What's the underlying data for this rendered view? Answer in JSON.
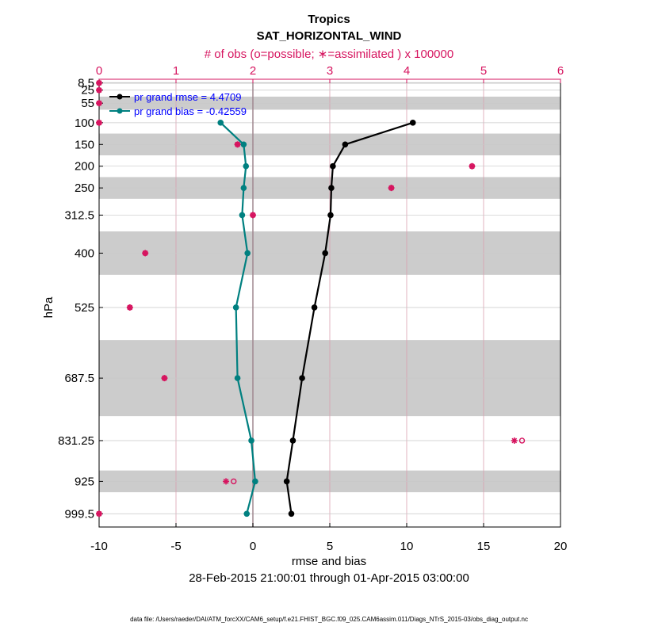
{
  "chart_data": {
    "type": "line",
    "title": "Tropics",
    "subtitle": "SAT_HORIZONTAL_WIND",
    "top_axis_label": "# of obs (o=possible; ∗=assimilated ) x 100000",
    "xlabel": "rmse and bias",
    "ylabel": "hPa",
    "date_range": "28-Feb-2015 21:00:01 through 01-Apr-2015 03:00:00",
    "footer": "data file: /Users/raeder/DAI/ATM_forcXX/CAM6_setup/f.e21.FHIST_BGC.f09_025.CAM6assim.011/Diags_NTrS_2015-03/obs_diag_output.nc",
    "xlim": [
      -10,
      20
    ],
    "xticks": [
      "-10",
      "-5",
      "0",
      "5",
      "10",
      "15",
      "20"
    ],
    "xtick_values": [
      -10,
      -5,
      0,
      5,
      10,
      15,
      20
    ],
    "top_xlim": [
      0,
      6
    ],
    "top_xticks": [
      "0",
      "1",
      "2",
      "3",
      "4",
      "5",
      "6"
    ],
    "top_xtick_values": [
      0,
      1,
      2,
      3,
      4,
      5,
      6
    ],
    "levels": [
      8.5,
      25,
      55,
      100,
      150,
      200,
      250,
      312.5,
      400,
      525,
      687.5,
      831.25,
      925,
      999.5
    ],
    "level_labels": [
      "8.5",
      "25",
      "55",
      "100",
      "150",
      "200",
      "250",
      "312.5",
      "400",
      "525",
      "687.5",
      "831.25",
      "925",
      "999.5"
    ],
    "ylim_top": 0,
    "ylim_bottom": 1030,
    "shaded_bands": [
      [
        7,
        10
      ],
      [
        40,
        70
      ],
      [
        125,
        175
      ],
      [
        225,
        275
      ],
      [
        350,
        450
      ],
      [
        600,
        775
      ],
      [
        900,
        950
      ]
    ],
    "series": [
      {
        "name": "pr grand rmse",
        "legend": "pr grand rmse = 4.4709",
        "color": "#000000",
        "levels": [
          100,
          150,
          200,
          250,
          312.5,
          400,
          525,
          687.5,
          831.25,
          925,
          999.5
        ],
        "values": [
          10.4,
          6.0,
          5.2,
          5.1,
          5.05,
          4.7,
          4.0,
          3.2,
          2.6,
          2.2,
          2.5
        ]
      },
      {
        "name": "pr grand bias",
        "legend": "pr grand bias = -0.42559",
        "color": "#008080",
        "levels": [
          100,
          150,
          200,
          250,
          312.5,
          400,
          525,
          687.5,
          831.25,
          925,
          999.5
        ],
        "values": [
          -2.1,
          -0.6,
          -0.45,
          -0.6,
          -0.7,
          -0.35,
          -1.1,
          -1.0,
          -0.1,
          0.15,
          -0.4
        ]
      }
    ],
    "obs_counts": {
      "color": "#d6145f",
      "levels": [
        8.5,
        25,
        55,
        100,
        150,
        200,
        250,
        312.5,
        400,
        525,
        687.5,
        831.25,
        925,
        999.5
      ],
      "assimilated": [
        0.0,
        0.0,
        0.0,
        0.0,
        1.8,
        4.85,
        3.8,
        2.0,
        0.6,
        0.4,
        0.85,
        5.4,
        1.65,
        0.0
      ],
      "possible": [
        0.0,
        0.0,
        0.0,
        0.0,
        1.8,
        4.85,
        3.8,
        2.0,
        0.6,
        0.4,
        0.85,
        5.5,
        1.75,
        0.0
      ]
    }
  }
}
